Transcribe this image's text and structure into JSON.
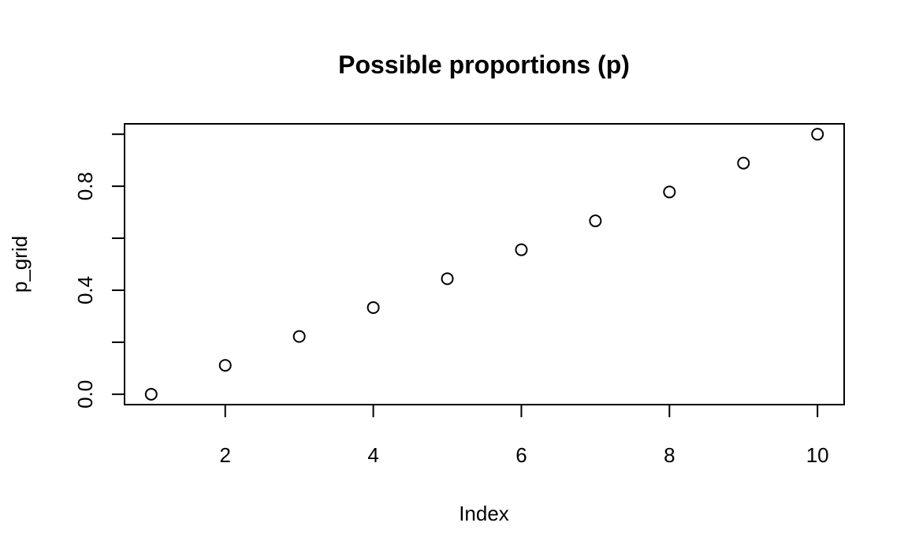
{
  "chart_data": {
    "type": "scatter",
    "title": "Possible proportions (p)",
    "xlabel": "Index",
    "ylabel": "p_grid",
    "x": [
      1,
      2,
      3,
      4,
      5,
      6,
      7,
      8,
      9,
      10
    ],
    "y": [
      0.0,
      0.1111,
      0.2222,
      0.3333,
      0.4444,
      0.5556,
      0.6667,
      0.7778,
      0.8889,
      1.0
    ],
    "xlim": [
      0.64,
      10.36
    ],
    "ylim": [
      -0.04,
      1.04
    ],
    "x_ticks": [
      2,
      4,
      6,
      8,
      10
    ],
    "x_tick_labels": [
      "2",
      "4",
      "6",
      "8",
      "10"
    ],
    "y_ticks": [
      0.0,
      0.2,
      0.4,
      0.6,
      0.8,
      1.0
    ],
    "y_tick_labels": [
      "0.0",
      "",
      "0.4",
      "",
      "0.8",
      ""
    ],
    "grid": false,
    "marker": "open-circle",
    "colors": {
      "point_stroke": "#000000",
      "frame": "#000000"
    }
  }
}
